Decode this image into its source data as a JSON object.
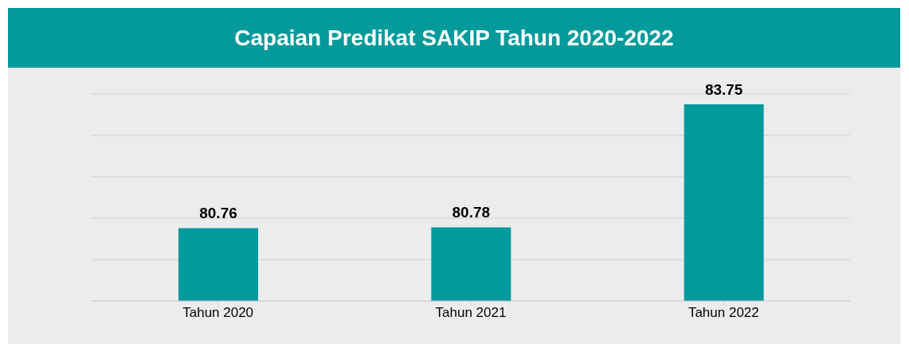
{
  "chart_data": {
    "type": "bar",
    "title": "Capaian Predikat SAKIP Tahun 2020-2022",
    "categories": [
      "Tahun 2020",
      "Tahun 2021",
      "Tahun 2022"
    ],
    "values": [
      80.76,
      80.78,
      83.75
    ],
    "color": "#049a9c",
    "ylim": [
      79,
      84
    ],
    "grid": "y",
    "tick_labels": "x",
    "data_labels": true
  }
}
